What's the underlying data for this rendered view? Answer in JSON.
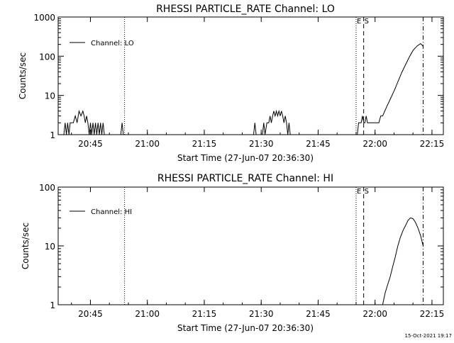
{
  "footer": {
    "timestamp": "15-Oct-2021 19:17"
  },
  "chart_data": [
    {
      "type": "line",
      "title": "RHESSI PARTICLE_RATE Channel: LO",
      "xlabel": "Start Time (27-Jun-07 20:36:30)",
      "ylabel": "Counts/sec",
      "y_scale": "log",
      "xlim": [
        "20:36:30",
        "22:18:00"
      ],
      "ylim": [
        1,
        1000
      ],
      "x_ticks": [
        "20:45",
        "21:00",
        "21:15",
        "21:30",
        "21:45",
        "22:00",
        "22:15"
      ],
      "y_ticks": [
        "1",
        "10",
        "100",
        "1000"
      ],
      "legend": {
        "position": "top-left",
        "entries": [
          "Channel: LO"
        ]
      },
      "markers": [
        {
          "time": "20:54:00",
          "style": "dotted",
          "label": ""
        },
        {
          "time": "21:55:00",
          "style": "dotted",
          "label": "E"
        },
        {
          "time": "21:57:00",
          "style": "dashed",
          "label": "S"
        },
        {
          "time": "22:12:40",
          "style": "dash-dot",
          "label": ""
        }
      ],
      "series": [
        {
          "name": "Channel: LO",
          "segments": [
            {
              "x": [
                "20:38:00",
                "20:38:20",
                "20:38:40",
                "20:39:00",
                "20:39:20",
                "20:39:40",
                "20:40:00",
                "20:40:30",
                "20:41:00",
                "20:41:30",
                "20:42:00",
                "20:42:30",
                "20:43:00",
                "20:43:20",
                "20:43:40",
                "20:44:00",
                "20:44:20",
                "20:44:40",
                "20:45:00",
                "20:45:20",
                "20:45:40",
                "20:46:00",
                "20:46:20",
                "20:46:40",
                "20:47:00",
                "20:47:20",
                "20:47:40",
                "20:48:00",
                "20:48:20",
                "20:48:40"
              ],
              "y": [
                1,
                2,
                1,
                2,
                1,
                2,
                2,
                2,
                3,
                2,
                4,
                3,
                4,
                3,
                2,
                3,
                2,
                1,
                2,
                1,
                2,
                1,
                2,
                1,
                2,
                1,
                2,
                1,
                2,
                1
              ]
            },
            {
              "x": [
                "20:53:00",
                "20:53:20",
                "20:53:40"
              ],
              "y": [
                1,
                2,
                1
              ]
            },
            {
              "x": [
                "21:28:00",
                "21:28:20",
                "21:28:40"
              ],
              "y": [
                1,
                2,
                1
              ]
            },
            {
              "x": [
                "21:30:20",
                "21:30:40",
                "21:31:00",
                "21:31:30",
                "21:32:00",
                "21:32:20",
                "21:32:40",
                "21:33:00",
                "21:33:20",
                "21:33:40",
                "21:34:00",
                "21:34:20",
                "21:34:40",
                "21:35:00",
                "21:35:20",
                "21:35:40",
                "21:36:00",
                "21:36:20",
                "21:36:40",
                "21:37:00",
                "21:37:20",
                "21:37:40"
              ],
              "y": [
                1,
                2,
                1,
                2,
                2,
                3,
                2,
                3,
                4,
                3,
                4,
                3,
                4,
                3,
                4,
                3,
                2,
                3,
                2,
                1,
                2,
                1
              ]
            },
            {
              "x": [
                "21:55:20",
                "21:55:40",
                "21:56:20",
                "21:56:40",
                "21:57:00",
                "21:57:20",
                "21:57:40",
                "21:58:00",
                "21:58:20",
                "21:59:00",
                "22:00:00",
                "22:01:00",
                "22:01:30",
                "22:02:00",
                "22:03:00",
                "22:04:00",
                "22:05:00",
                "22:06:00",
                "22:07:00",
                "22:08:00",
                "22:09:00",
                "22:10:00",
                "22:11:00",
                "22:12:00",
                "22:12:40"
              ],
              "y": [
                1,
                2,
                2,
                3,
                2,
                2,
                3,
                2,
                2,
                2,
                2,
                2,
                3,
                3,
                5,
                8,
                13,
                22,
                38,
                60,
                95,
                140,
                180,
                210,
                180
              ]
            }
          ]
        }
      ]
    },
    {
      "type": "line",
      "title": "RHESSI PARTICLE_RATE Channel: HI",
      "xlabel": "Start Time (27-Jun-07 20:36:30)",
      "ylabel": "Counts/sec",
      "y_scale": "log",
      "xlim": [
        "20:36:30",
        "22:18:00"
      ],
      "ylim": [
        1,
        100
      ],
      "x_ticks": [
        "20:45",
        "21:00",
        "21:15",
        "21:30",
        "21:45",
        "22:00",
        "22:15"
      ],
      "y_ticks": [
        "1",
        "10",
        "100"
      ],
      "legend": {
        "position": "top-left",
        "entries": [
          "Channel: HI"
        ]
      },
      "markers": [
        {
          "time": "20:54:00",
          "style": "dotted",
          "label": ""
        },
        {
          "time": "21:55:00",
          "style": "dotted",
          "label": "E"
        },
        {
          "time": "21:57:00",
          "style": "dashed",
          "label": "S"
        },
        {
          "time": "22:12:40",
          "style": "dash-dot",
          "label": ""
        }
      ],
      "series": [
        {
          "name": "Channel: HI",
          "segments": [
            {
              "x": [
                "22:02:00",
                "22:02:40",
                "22:03:20",
                "22:04:00",
                "22:04:40",
                "22:05:20",
                "22:06:00",
                "22:06:40",
                "22:07:20",
                "22:08:00",
                "22:08:40",
                "22:09:20",
                "22:10:00",
                "22:10:40",
                "22:11:20",
                "22:12:00",
                "22:12:40"
              ],
              "y": [
                1,
                1.6,
                2.2,
                3,
                4.5,
                6.5,
                10,
                14,
                18,
                22,
                27,
                30,
                29,
                25,
                20,
                15,
                10
              ]
            }
          ]
        }
      ]
    }
  ]
}
